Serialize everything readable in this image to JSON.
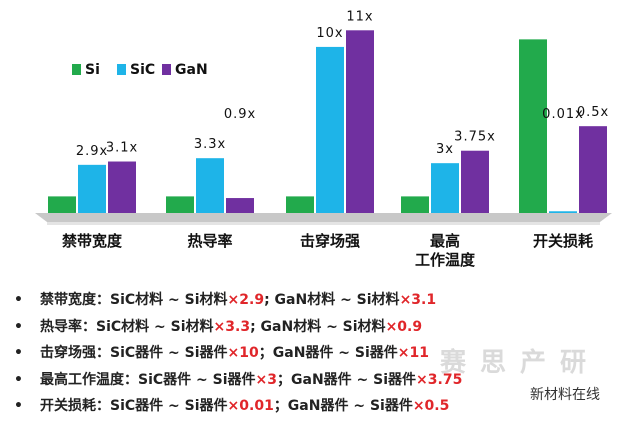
{
  "chart_data": [
    {
      "type": "bar",
      "legend": "upper left",
      "categories": [
        "禁带宽度",
        "热导率",
        "击穿场强",
        "最高\n工作温度"
      ],
      "series": [
        {
          "name": "Si",
          "color": "#22aa4c",
          "values": [
            1,
            1,
            1,
            1
          ]
        },
        {
          "name": "SiC",
          "color": "#1eb4e8",
          "values": [
            2.9,
            3.3,
            10,
            3
          ],
          "value_labels": [
            "2.9x",
            "3.3x",
            "10x",
            "3x"
          ]
        },
        {
          "name": "GaN",
          "color": "#7030a0",
          "values": [
            3.1,
            0.9,
            11,
            3.75
          ],
          "value_labels": [
            "3.1x",
            "0.9x",
            "11x",
            "3.75x"
          ]
        }
      ],
      "ylim": [
        0,
        11.5
      ]
    },
    {
      "type": "bar",
      "categories": [
        "开关损耗"
      ],
      "series": [
        {
          "name": "Si",
          "color": "#22aa4c",
          "values": [
            1
          ]
        },
        {
          "name": "SiC",
          "color": "#1eb4e8",
          "values": [
            0.01
          ],
          "value_labels": [
            "0.01x"
          ]
        },
        {
          "name": "GaN",
          "color": "#7030a0",
          "values": [
            0.5
          ],
          "value_labels": [
            "0.5x"
          ]
        }
      ],
      "ylim": [
        0,
        1.1
      ]
    }
  ],
  "notes": [
    [
      "禁带宽度：SiC材料 ~ Si材料",
      "×2.9",
      "; GaN材料 ~ Si材料",
      "×3.1"
    ],
    [
      "热导率：SiC材料 ~ Si材料",
      "×3.3",
      "; GaN材料 ~ Si材料",
      "×0.9"
    ],
    [
      "击穿场强：SiC器件 ~ Si器件",
      "×10",
      "；GaN器件 ~ Si器件",
      "×11"
    ],
    [
      "最高工作温度：SiC器件 ~ Si器件",
      "×3",
      "；GaN器件 ~ Si器件",
      "×3.75"
    ],
    [
      "开关损耗：SiC器件 ~ Si器件",
      "×0.01",
      "；GaN器件 ~ Si器件",
      "×0.5"
    ]
  ],
  "watermark": [
    "赛思产研",
    "新材料在线"
  ]
}
